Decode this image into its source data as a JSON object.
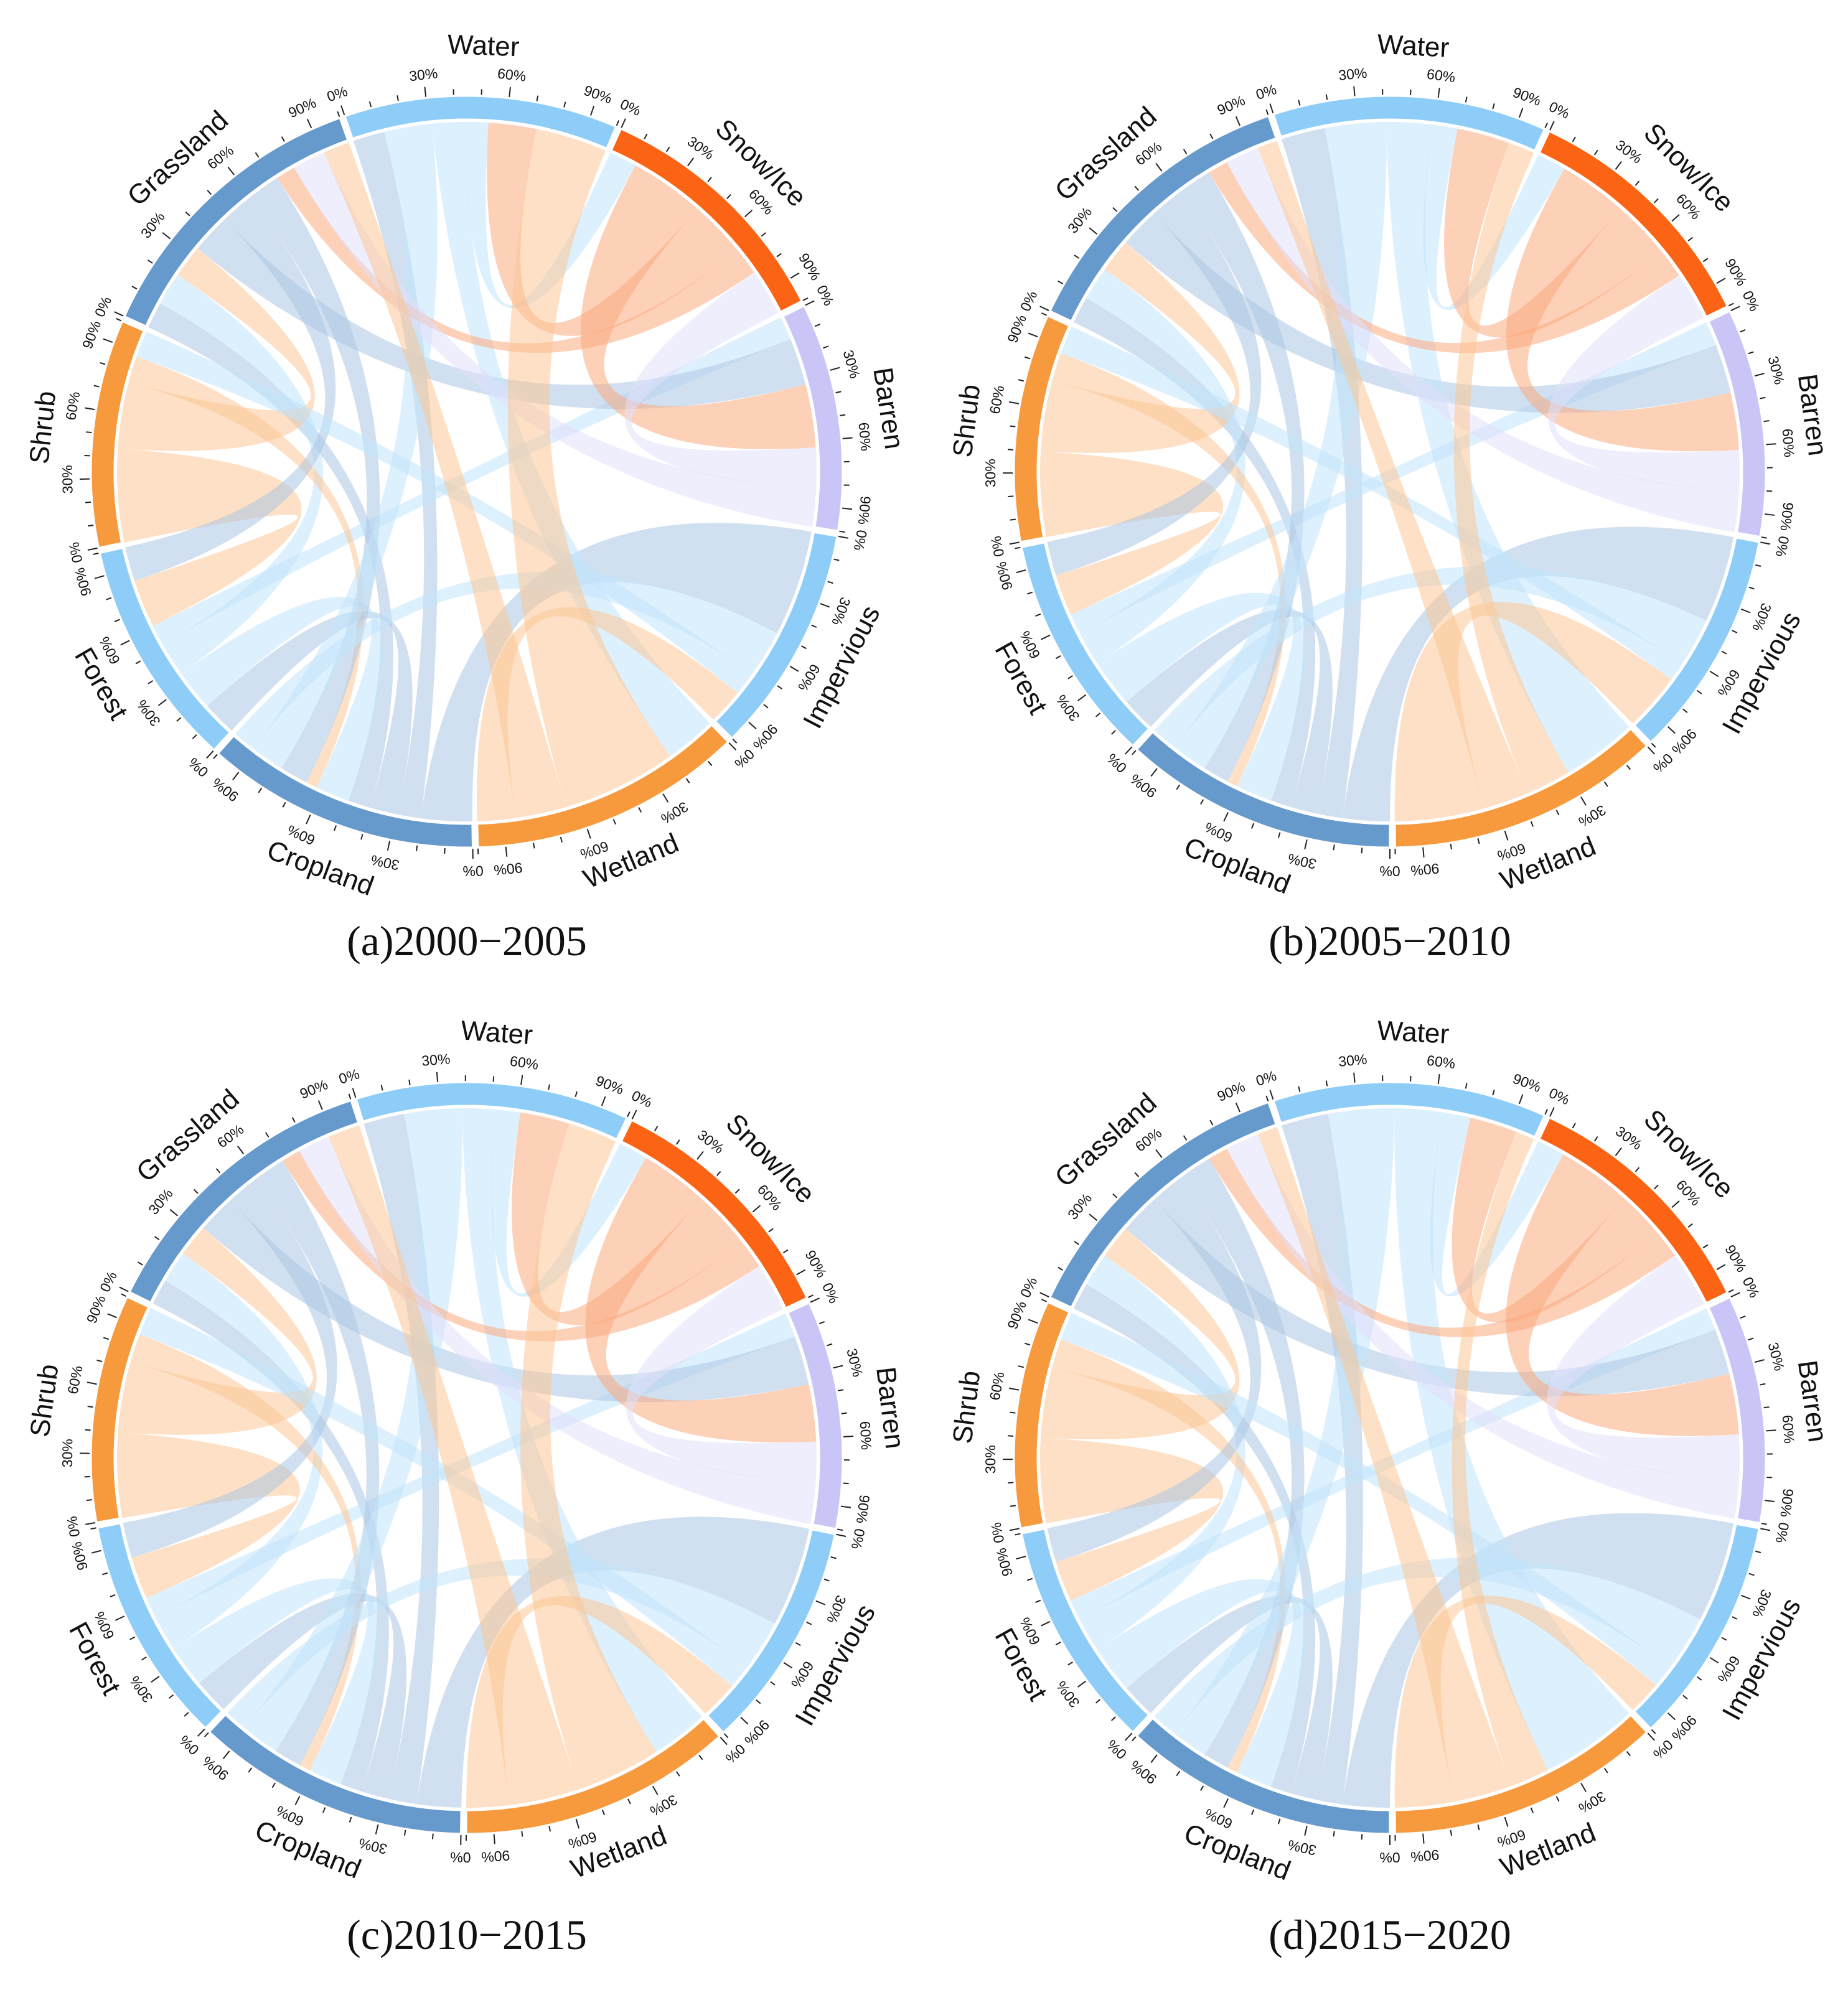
{
  "figure": {
    "categories": [
      "Cropland",
      "Forest",
      "Shrub",
      "Grassland",
      "Water",
      "Snow/Ice",
      "Barren",
      "Impervious",
      "Wetland"
    ],
    "tick_percent_labels": [
      "0%",
      "30%",
      "60%",
      "90%"
    ]
  },
  "colors": {
    "Cropland": "#6699cc",
    "Forest": "#8ecdf7",
    "Shrub": "#f79a3e",
    "Grassland": "#6699cc",
    "Water": "#8ecdf7",
    "Snow/Ice": "#fa6414",
    "Barren": "#c9c6f7",
    "Impervious": "#8ecdf7",
    "Wetland": "#f79a3e"
  },
  "chart_data": [
    {
      "type": "chord",
      "title": "(a)2000−2005",
      "segments": [
        {
          "name": "Cropland",
          "share": 12
        },
        {
          "name": "Forest",
          "share": 10
        },
        {
          "name": "Shrub",
          "share": 10
        },
        {
          "name": "Grassland",
          "share": 13
        },
        {
          "name": "Water",
          "share": 12
        },
        {
          "name": "Snow/Ice",
          "share": 11
        },
        {
          "name": "Barren",
          "share": 10
        },
        {
          "name": "Impervious",
          "share": 10
        },
        {
          "name": "Wetland",
          "share": 12
        }
      ],
      "flows": [
        {
          "from": "Cropland",
          "to": "Impervious",
          "value": 4.5
        },
        {
          "from": "Cropland",
          "to": "Water",
          "value": 2.0
        },
        {
          "from": "Cropland",
          "to": "Forest",
          "value": 2.5
        },
        {
          "from": "Cropland",
          "to": "Grassland",
          "value": 2.0
        },
        {
          "from": "Forest",
          "to": "Cropland",
          "value": 3.0
        },
        {
          "from": "Forest",
          "to": "Grassland",
          "value": 2.5
        },
        {
          "from": "Forest",
          "to": "Barren",
          "value": 1.5
        },
        {
          "from": "Shrub",
          "to": "Forest",
          "value": 3.5
        },
        {
          "from": "Shrub",
          "to": "Grassland",
          "value": 2.5
        },
        {
          "from": "Shrub",
          "to": "Cropland",
          "value": 1.0
        },
        {
          "from": "Grassland",
          "to": "Barren",
          "value": 3.0
        },
        {
          "from": "Grassland",
          "to": "Forest",
          "value": 2.5
        },
        {
          "from": "Grassland",
          "to": "Cropland",
          "value": 2.5
        },
        {
          "from": "Water",
          "to": "Cropland",
          "value": 3.0
        },
        {
          "from": "Water",
          "to": "Wetland",
          "value": 2.0
        },
        {
          "from": "Water",
          "to": "Snow/Ice",
          "value": 1.5
        },
        {
          "from": "Snow/Ice",
          "to": "Barren",
          "value": 4.0
        },
        {
          "from": "Snow/Ice",
          "to": "Water",
          "value": 3.0
        },
        {
          "from": "Snow/Ice",
          "to": "Grassland",
          "value": 1.5
        },
        {
          "from": "Barren",
          "to": "Snow/Ice",
          "value": 2.5
        },
        {
          "from": "Barren",
          "to": "Grassland",
          "value": 2.5
        },
        {
          "from": "Impervious",
          "to": "Cropland",
          "value": 2.0
        },
        {
          "from": "Impervious",
          "to": "Shrub",
          "value": 1.0
        },
        {
          "from": "Wetland",
          "to": "Water",
          "value": 4.5
        },
        {
          "from": "Wetland",
          "to": "Grassland",
          "value": 2.0
        },
        {
          "from": "Wetland",
          "to": "Impervious",
          "value": 1.5
        }
      ]
    },
    {
      "type": "chord",
      "title": "(b)2005−2010",
      "segments": [
        {
          "name": "Cropland",
          "share": 12
        },
        {
          "name": "Forest",
          "share": 10
        },
        {
          "name": "Shrub",
          "share": 10
        },
        {
          "name": "Grassland",
          "share": 13
        },
        {
          "name": "Water",
          "share": 12
        },
        {
          "name": "Snow/Ice",
          "share": 11
        },
        {
          "name": "Barren",
          "share": 10
        },
        {
          "name": "Impervious",
          "share": 10
        },
        {
          "name": "Wetland",
          "share": 12
        }
      ],
      "flows": [
        {
          "from": "Cropland",
          "to": "Impervious",
          "value": 4.5
        },
        {
          "from": "Cropland",
          "to": "Water",
          "value": 2.5
        },
        {
          "from": "Cropland",
          "to": "Forest",
          "value": 2.5
        },
        {
          "from": "Cropland",
          "to": "Grassland",
          "value": 2.0
        },
        {
          "from": "Forest",
          "to": "Cropland",
          "value": 3.5
        },
        {
          "from": "Forest",
          "to": "Grassland",
          "value": 2.5
        },
        {
          "from": "Forest",
          "to": "Barren",
          "value": 1.5
        },
        {
          "from": "Shrub",
          "to": "Forest",
          "value": 3.0
        },
        {
          "from": "Shrub",
          "to": "Grassland",
          "value": 2.5
        },
        {
          "from": "Shrub",
          "to": "Cropland",
          "value": 1.0
        },
        {
          "from": "Grassland",
          "to": "Barren",
          "value": 3.0
        },
        {
          "from": "Grassland",
          "to": "Forest",
          "value": 2.5
        },
        {
          "from": "Grassland",
          "to": "Cropland",
          "value": 2.5
        },
        {
          "from": "Water",
          "to": "Cropland",
          "value": 3.5
        },
        {
          "from": "Water",
          "to": "Wetland",
          "value": 2.5
        },
        {
          "from": "Water",
          "to": "Snow/Ice",
          "value": 1.5
        },
        {
          "from": "Snow/Ice",
          "to": "Barren",
          "value": 3.5
        },
        {
          "from": "Snow/Ice",
          "to": "Water",
          "value": 3.0
        },
        {
          "from": "Snow/Ice",
          "to": "Grassland",
          "value": 1.5
        },
        {
          "from": "Barren",
          "to": "Snow/Ice",
          "value": 2.5
        },
        {
          "from": "Barren",
          "to": "Grassland",
          "value": 2.5
        },
        {
          "from": "Impervious",
          "to": "Cropland",
          "value": 2.5
        },
        {
          "from": "Impervious",
          "to": "Shrub",
          "value": 1.0
        },
        {
          "from": "Wetland",
          "to": "Water",
          "value": 1.5
        },
        {
          "from": "Wetland",
          "to": "Grassland",
          "value": 1.5
        },
        {
          "from": "Wetland",
          "to": "Impervious",
          "value": 3.0
        }
      ]
    },
    {
      "type": "chord",
      "title": "(c)2010−2015",
      "segments": [
        {
          "name": "Cropland",
          "share": 12
        },
        {
          "name": "Forest",
          "share": 10
        },
        {
          "name": "Shrub",
          "share": 10
        },
        {
          "name": "Grassland",
          "share": 13
        },
        {
          "name": "Water",
          "share": 12
        },
        {
          "name": "Snow/Ice",
          "share": 11
        },
        {
          "name": "Barren",
          "share": 10
        },
        {
          "name": "Impervious",
          "share": 10
        },
        {
          "name": "Wetland",
          "share": 12
        }
      ],
      "flows": [
        {
          "from": "Cropland",
          "to": "Impervious",
          "value": 4.0
        },
        {
          "from": "Cropland",
          "to": "Water",
          "value": 2.5
        },
        {
          "from": "Cropland",
          "to": "Forest",
          "value": 2.5
        },
        {
          "from": "Cropland",
          "to": "Grassland",
          "value": 2.0
        },
        {
          "from": "Forest",
          "to": "Cropland",
          "value": 3.0
        },
        {
          "from": "Forest",
          "to": "Grassland",
          "value": 2.5
        },
        {
          "from": "Forest",
          "to": "Barren",
          "value": 1.5
        },
        {
          "from": "Shrub",
          "to": "Forest",
          "value": 3.0
        },
        {
          "from": "Shrub",
          "to": "Grassland",
          "value": 2.5
        },
        {
          "from": "Shrub",
          "to": "Cropland",
          "value": 1.0
        },
        {
          "from": "Grassland",
          "to": "Barren",
          "value": 3.0
        },
        {
          "from": "Grassland",
          "to": "Forest",
          "value": 2.5
        },
        {
          "from": "Grassland",
          "to": "Cropland",
          "value": 2.5
        },
        {
          "from": "Water",
          "to": "Cropland",
          "value": 3.5
        },
        {
          "from": "Water",
          "to": "Wetland",
          "value": 2.0
        },
        {
          "from": "Water",
          "to": "Snow/Ice",
          "value": 1.5
        },
        {
          "from": "Snow/Ice",
          "to": "Barren",
          "value": 3.5
        },
        {
          "from": "Snow/Ice",
          "to": "Water",
          "value": 3.0
        },
        {
          "from": "Snow/Ice",
          "to": "Grassland",
          "value": 1.5
        },
        {
          "from": "Barren",
          "to": "Snow/Ice",
          "value": 2.5
        },
        {
          "from": "Barren",
          "to": "Grassland",
          "value": 2.5
        },
        {
          "from": "Impervious",
          "to": "Cropland",
          "value": 2.0
        },
        {
          "from": "Impervious",
          "to": "Shrub",
          "value": 1.0
        },
        {
          "from": "Wetland",
          "to": "Water",
          "value": 3.0
        },
        {
          "from": "Wetland",
          "to": "Grassland",
          "value": 2.5
        },
        {
          "from": "Wetland",
          "to": "Impervious",
          "value": 1.5
        }
      ]
    },
    {
      "type": "chord",
      "title": "(d)2015−2020",
      "segments": [
        {
          "name": "Cropland",
          "share": 12
        },
        {
          "name": "Forest",
          "share": 10
        },
        {
          "name": "Shrub",
          "share": 10
        },
        {
          "name": "Grassland",
          "share": 13
        },
        {
          "name": "Water",
          "share": 12
        },
        {
          "name": "Snow/Ice",
          "share": 11
        },
        {
          "name": "Barren",
          "share": 10
        },
        {
          "name": "Impervious",
          "share": 10
        },
        {
          "name": "Wetland",
          "share": 12
        }
      ],
      "flows": [
        {
          "from": "Cropland",
          "to": "Impervious",
          "value": 4.5
        },
        {
          "from": "Cropland",
          "to": "Water",
          "value": 2.5
        },
        {
          "from": "Cropland",
          "to": "Forest",
          "value": 2.5
        },
        {
          "from": "Cropland",
          "to": "Grassland",
          "value": 2.0
        },
        {
          "from": "Forest",
          "to": "Cropland",
          "value": 3.5
        },
        {
          "from": "Forest",
          "to": "Grassland",
          "value": 2.5
        },
        {
          "from": "Forest",
          "to": "Barren",
          "value": 1.5
        },
        {
          "from": "Shrub",
          "to": "Forest",
          "value": 3.0
        },
        {
          "from": "Shrub",
          "to": "Grassland",
          "value": 2.5
        },
        {
          "from": "Shrub",
          "to": "Cropland",
          "value": 1.0
        },
        {
          "from": "Grassland",
          "to": "Barren",
          "value": 3.0
        },
        {
          "from": "Grassland",
          "to": "Forest",
          "value": 2.5
        },
        {
          "from": "Grassland",
          "to": "Cropland",
          "value": 2.5
        },
        {
          "from": "Water",
          "to": "Cropland",
          "value": 3.5
        },
        {
          "from": "Water",
          "to": "Wetland",
          "value": 2.5
        },
        {
          "from": "Water",
          "to": "Snow/Ice",
          "value": 1.5
        },
        {
          "from": "Snow/Ice",
          "to": "Barren",
          "value": 4.0
        },
        {
          "from": "Snow/Ice",
          "to": "Water",
          "value": 2.5
        },
        {
          "from": "Snow/Ice",
          "to": "Grassland",
          "value": 1.5
        },
        {
          "from": "Barren",
          "to": "Snow/Ice",
          "value": 3.0
        },
        {
          "from": "Barren",
          "to": "Grassland",
          "value": 2.5
        },
        {
          "from": "Impervious",
          "to": "Cropland",
          "value": 2.5
        },
        {
          "from": "Impervious",
          "to": "Shrub",
          "value": 1.0
        },
        {
          "from": "Wetland",
          "to": "Water",
          "value": 1.0
        },
        {
          "from": "Wetland",
          "to": "Grassland",
          "value": 1.5
        },
        {
          "from": "Wetland",
          "to": "Impervious",
          "value": 1.5
        }
      ]
    }
  ]
}
